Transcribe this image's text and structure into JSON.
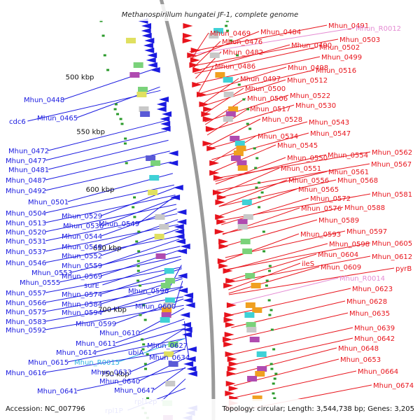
{
  "title": "Methanospirillum hungatei JF-1, complete genome",
  "accession": "Accession: NC_007796",
  "summary": "Topology: circular; Length: 3,544,738 bp; Genes: 3,205",
  "colors": {
    "forward": "#e8141c",
    "reverse": "#1a1ae0",
    "rna_forward": "#e58bd3",
    "rna_reverse": "#2bb0e0",
    "backbone": "#9a9a9a"
  },
  "kbp_marks": [
    "500 kbp",
    "550 kbp",
    "600 kbp",
    "650 kbp",
    "700 kbp",
    "750 kbp"
  ],
  "left_labels": [
    {
      "text": "Mhun_0448",
      "kind": "gene"
    },
    {
      "text": "cdc6",
      "kind": "gene"
    },
    {
      "text": "Mhun_0465",
      "kind": "gene"
    },
    {
      "text": "Mhun_0472",
      "kind": "gene"
    },
    {
      "text": "Mhun_0477",
      "kind": "gene"
    },
    {
      "text": "Mhun_0481",
      "kind": "gene"
    },
    {
      "text": "Mhun_0487",
      "kind": "gene"
    },
    {
      "text": "Mhun_0492",
      "kind": "gene"
    },
    {
      "text": "Mhun_0501",
      "kind": "gene"
    },
    {
      "text": "Mhun_0504",
      "kind": "gene"
    },
    {
      "text": "Mhun_0529",
      "kind": "gene"
    },
    {
      "text": "Mhun_0513",
      "kind": "gene"
    },
    {
      "text": "Mhun_0536",
      "kind": "gene"
    },
    {
      "text": "Mhun_0549",
      "kind": "gene"
    },
    {
      "text": "Mhun_0520",
      "kind": "gene"
    },
    {
      "text": "Mhun_0544",
      "kind": "gene"
    },
    {
      "text": "Mhun_0531",
      "kind": "gene"
    },
    {
      "text": "Mhun_0548",
      "kind": "gene"
    },
    {
      "text": "Mhun_0537",
      "kind": "gene"
    },
    {
      "text": "Mhun_0552",
      "kind": "gene"
    },
    {
      "text": "Mhun_0546",
      "kind": "gene"
    },
    {
      "text": "Mhun_0559",
      "kind": "gene"
    },
    {
      "text": "Mhun_0553",
      "kind": "gene"
    },
    {
      "text": "Mhun_0569",
      "kind": "gene"
    },
    {
      "text": "Mhun_0555",
      "kind": "gene"
    },
    {
      "text": "surE",
      "kind": "gene"
    },
    {
      "text": "Mhun_0596",
      "kind": "gene"
    },
    {
      "text": "Mhun_0557",
      "kind": "gene"
    },
    {
      "text": "Mhun_0574",
      "kind": "gene"
    },
    {
      "text": "Mhun_0566",
      "kind": "gene"
    },
    {
      "text": "Mhun_0584",
      "kind": "gene"
    },
    {
      "text": "Mhun_0600",
      "kind": "gene"
    },
    {
      "text": "Mhun_0575",
      "kind": "gene"
    },
    {
      "text": "Mhun_0594",
      "kind": "gene"
    },
    {
      "text": "Mhun_0583",
      "kind": "gene"
    },
    {
      "text": "Mhun_0599",
      "kind": "gene"
    },
    {
      "text": "Mhun_0592",
      "kind": "gene"
    },
    {
      "text": "Mhun_0610",
      "kind": "gene"
    },
    {
      "text": "Mhun_0611",
      "kind": "gene"
    },
    {
      "text": "Mhun_0627",
      "kind": "gene"
    },
    {
      "text": "Mhun_0614",
      "kind": "gene"
    },
    {
      "text": "ubiA",
      "kind": "gene"
    },
    {
      "text": "Mhun_0634",
      "kind": "gene"
    },
    {
      "text": "Mhun_0615",
      "kind": "gene"
    },
    {
      "text": "Mhun_R0015",
      "kind": "rna"
    },
    {
      "text": "Mhun_0633",
      "kind": "gene"
    },
    {
      "text": "Mhun_0616",
      "kind": "gene"
    },
    {
      "text": "Mhun_0640",
      "kind": "gene"
    },
    {
      "text": "Mhun_0647",
      "kind": "gene"
    },
    {
      "text": "Mhun_0641",
      "kind": "gene"
    },
    {
      "text": "rpl12p",
      "kind": "gene"
    },
    {
      "text": "rpl1P",
      "kind": "gene"
    }
  ],
  "right_labels": [
    {
      "text": "Mhun_0491",
      "kind": "gene"
    },
    {
      "text": "Mhun_R0012",
      "kind": "rna"
    },
    {
      "text": "Mhun_0469",
      "kind": "gene"
    },
    {
      "text": "Mhun_0484",
      "kind": "gene"
    },
    {
      "text": "Mhun_0503",
      "kind": "gene"
    },
    {
      "text": "Mhun_0476",
      "kind": "gene"
    },
    {
      "text": "Mhun_0490",
      "kind": "gene"
    },
    {
      "text": "Mhun_0502",
      "kind": "gene"
    },
    {
      "text": "Mhun_0482",
      "kind": "gene"
    },
    {
      "text": "Mhun_0499",
      "kind": "gene"
    },
    {
      "text": "Mhun_0486",
      "kind": "gene"
    },
    {
      "text": "Mhun_0498",
      "kind": "gene"
    },
    {
      "text": "Mhun_0516",
      "kind": "gene"
    },
    {
      "text": "Mhun_0497",
      "kind": "gene"
    },
    {
      "text": "Mhun_0512",
      "kind": "gene"
    },
    {
      "text": "Mhun_0500",
      "kind": "gene"
    },
    {
      "text": "Mhun_0522",
      "kind": "gene"
    },
    {
      "text": "Mhun_0506",
      "kind": "gene"
    },
    {
      "text": "Mhun_0530",
      "kind": "gene"
    },
    {
      "text": "Mhun_0517",
      "kind": "gene"
    },
    {
      "text": "Mhun_0528",
      "kind": "gene"
    },
    {
      "text": "Mhun_0543",
      "kind": "gene"
    },
    {
      "text": "Mhun_0547",
      "kind": "gene"
    },
    {
      "text": "Mhun_0534",
      "kind": "gene"
    },
    {
      "text": "Mhun_0545",
      "kind": "gene"
    },
    {
      "text": "Mhun_0562",
      "kind": "gene"
    },
    {
      "text": "Mhun_0550",
      "kind": "gene"
    },
    {
      "text": "Mhun_0554",
      "kind": "gene"
    },
    {
      "text": "Mhun_0567",
      "kind": "gene"
    },
    {
      "text": "Mhun_0551",
      "kind": "gene"
    },
    {
      "text": "Mhun_0561",
      "kind": "gene"
    },
    {
      "text": "Mhun_0556",
      "kind": "gene"
    },
    {
      "text": "Mhun_0568",
      "kind": "gene"
    },
    {
      "text": "Mhun_0565",
      "kind": "gene"
    },
    {
      "text": "Mhun_0581",
      "kind": "gene"
    },
    {
      "text": "Mhun_0572",
      "kind": "gene"
    },
    {
      "text": "Mhun_0576",
      "kind": "gene"
    },
    {
      "text": "Mhun_0588",
      "kind": "gene"
    },
    {
      "text": "Mhun_0589",
      "kind": "gene"
    },
    {
      "text": "Mhun_0597",
      "kind": "gene"
    },
    {
      "text": "Mhun_0593",
      "kind": "gene"
    },
    {
      "text": "Mhun_0598",
      "kind": "gene"
    },
    {
      "text": "Mhun_0605",
      "kind": "gene"
    },
    {
      "text": "Mhun_0604",
      "kind": "gene"
    },
    {
      "text": "Mhun_0612",
      "kind": "gene"
    },
    {
      "text": "ileS",
      "kind": "gene"
    },
    {
      "text": "Mhun_0609",
      "kind": "gene"
    },
    {
      "text": "pyrB",
      "kind": "gene"
    },
    {
      "text": "Mhun_R0014",
      "kind": "rna"
    },
    {
      "text": "Mhun_0623",
      "kind": "gene"
    },
    {
      "text": "Mhun_0628",
      "kind": "gene"
    },
    {
      "text": "Mhun_0635",
      "kind": "gene"
    },
    {
      "text": "Mhun_0639",
      "kind": "gene"
    },
    {
      "text": "Mhun_0642",
      "kind": "gene"
    },
    {
      "text": "Mhun_0648",
      "kind": "gene"
    },
    {
      "text": "Mhun_0653",
      "kind": "gene"
    },
    {
      "text": "Mhun_0664",
      "kind": "gene"
    },
    {
      "text": "Mhun_0674",
      "kind": "gene"
    }
  ]
}
